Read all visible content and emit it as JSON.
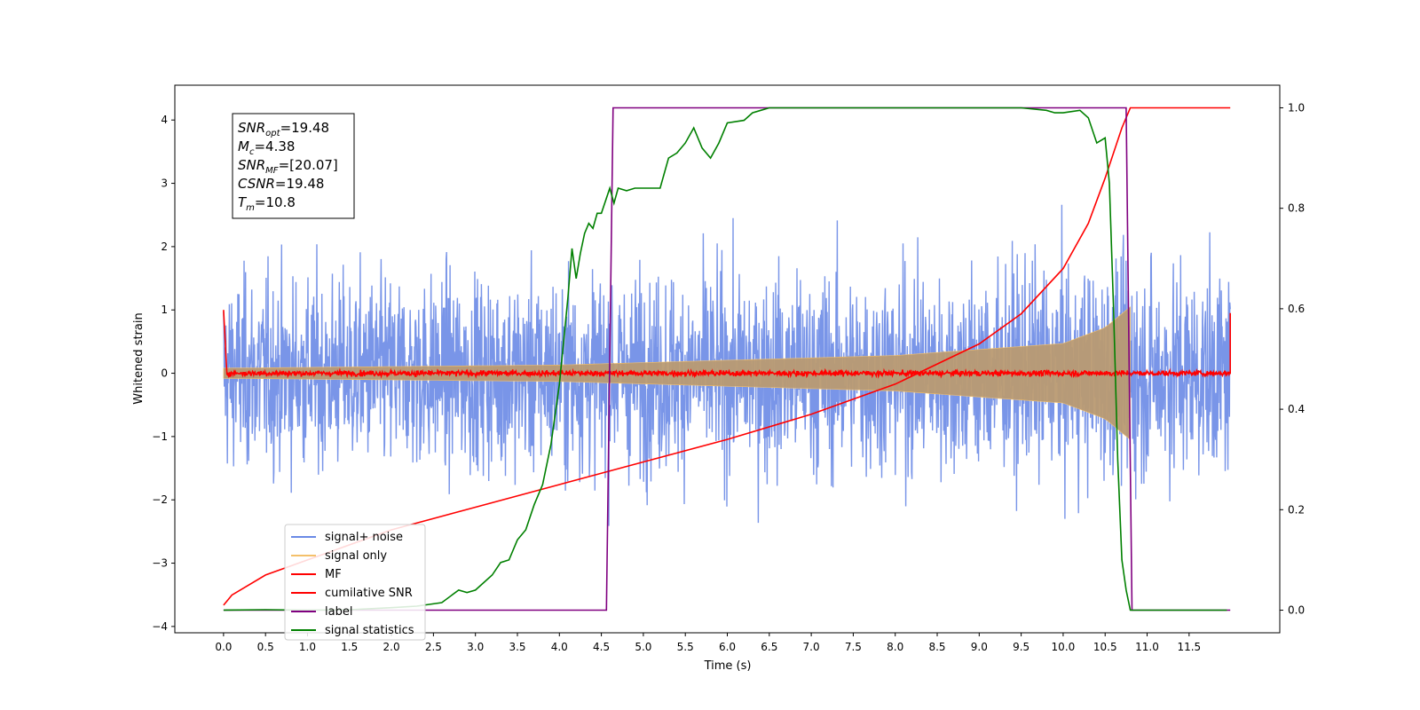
{
  "chart_data": {
    "type": "line",
    "xlabel": "Time (s)",
    "ylabel": "Whitened strain",
    "xlim": [
      -0.58,
      12.58
    ],
    "ylim": [
      -4.1,
      4.55
    ],
    "ylim_right": [
      -0.045,
      1.045
    ],
    "x_ticks": [
      0.0,
      0.5,
      1.0,
      1.5,
      2.0,
      2.5,
      3.0,
      3.5,
      4.0,
      4.5,
      5.0,
      5.5,
      6.0,
      6.5,
      7.0,
      7.5,
      8.0,
      8.5,
      9.0,
      9.5,
      10.0,
      10.5,
      11.0,
      11.5
    ],
    "x_tick_labels": [
      "0.0",
      "0.5",
      "1.0",
      "1.5",
      "2.0",
      "2.5",
      "3.0",
      "3.5",
      "4.0",
      "4.5",
      "5.0",
      "5.5",
      "6.0",
      "6.5",
      "7.0",
      "7.5",
      "8.0",
      "8.5",
      "9.0",
      "9.5",
      "10.0",
      "10.5",
      "11.0",
      "11.5"
    ],
    "y_ticks": [
      -4,
      -3,
      -2,
      -1,
      0,
      1,
      2,
      3,
      4
    ],
    "y_tick_labels": [
      "−4",
      "−3",
      "−2",
      "−1",
      "0",
      "1",
      "2",
      "3",
      "4"
    ],
    "y_right_ticks": [
      0.0,
      0.2,
      0.4,
      0.6,
      0.8,
      1.0
    ],
    "y_right_tick_labels": [
      "0.0",
      "0.2",
      "0.4",
      "0.6",
      "0.8",
      "1.0"
    ],
    "legend_position": "lower-left",
    "colors": {
      "signal_noise": "#6a8ae6",
      "signal_only": "#f4c06a",
      "mf": "#ff0000",
      "cumulative_snr": "#ff0000",
      "label": "#800080",
      "signal_statistics": "#008000"
    },
    "series": [
      {
        "name": "signal+ noise",
        "axis": "left",
        "note_rendering": "dense random noise, sigma grows near merger",
        "t_range": [
          0.0,
          11.99
        ],
        "envelope": [
          {
            "t": 0.0,
            "amp": 2.3
          },
          {
            "t": 5.0,
            "amp": 2.4
          },
          {
            "t": 10.0,
            "amp": 2.6
          },
          {
            "t": 10.8,
            "amp": 2.7
          },
          {
            "t": 11.99,
            "amp": 2.4
          }
        ]
      },
      {
        "name": "signal only",
        "axis": "left",
        "t_range": [
          0.0,
          10.8
        ],
        "envelope": [
          {
            "t": 0.0,
            "amp": 0.08
          },
          {
            "t": 4.0,
            "amp": 0.13
          },
          {
            "t": 8.0,
            "amp": 0.28
          },
          {
            "t": 10.0,
            "amp": 0.47
          },
          {
            "t": 10.5,
            "amp": 0.72
          },
          {
            "t": 10.8,
            "amp": 1.05
          }
        ]
      },
      {
        "name": "MF",
        "axis": "left",
        "t_range": [
          0.0,
          11.99
        ],
        "start_value": 1.0,
        "end_value": 0.95,
        "baseline": 0.0,
        "noise_amp": 0.05
      },
      {
        "name": "cumilative SNR",
        "axis": "right",
        "x": [
          0.0,
          0.1,
          0.5,
          1.0,
          2.0,
          3.0,
          4.0,
          5.0,
          6.0,
          7.0,
          8.0,
          9.0,
          9.5,
          10.0,
          10.3,
          10.5,
          10.7,
          10.8,
          11.99
        ],
        "y": [
          0.01,
          0.03,
          0.07,
          0.1,
          0.16,
          0.205,
          0.25,
          0.295,
          0.34,
          0.39,
          0.45,
          0.53,
          0.59,
          0.68,
          0.77,
          0.86,
          0.96,
          1.0,
          1.0
        ]
      },
      {
        "name": "label",
        "axis": "right",
        "x": [
          0.0,
          4.56,
          4.64,
          10.75,
          10.82,
          11.99
        ],
        "y": [
          0.0,
          0.0,
          1.0,
          1.0,
          0.0,
          0.0
        ]
      },
      {
        "name": "signal statistics",
        "axis": "right",
        "x": [
          0.0,
          0.5,
          1.0,
          1.5,
          2.0,
          2.3,
          2.6,
          2.8,
          2.9,
          3.0,
          3.2,
          3.3,
          3.4,
          3.5,
          3.6,
          3.7,
          3.8,
          3.9,
          4.0,
          4.1,
          4.15,
          4.2,
          4.25,
          4.3,
          4.35,
          4.4,
          4.45,
          4.5,
          4.6,
          4.65,
          4.7,
          4.8,
          4.9,
          5.0,
          5.2,
          5.3,
          5.4,
          5.5,
          5.6,
          5.7,
          5.8,
          5.9,
          6.0,
          6.2,
          6.3,
          6.4,
          6.5,
          6.8,
          7.0,
          7.5,
          8.0,
          8.5,
          9.0,
          9.5,
          9.8,
          9.9,
          10.0,
          10.2,
          10.3,
          10.4,
          10.5,
          10.55,
          10.6,
          10.65,
          10.7,
          10.75,
          10.8,
          10.9,
          11.5,
          11.95
        ],
        "y": [
          0.0,
          0.001,
          0.0,
          0.001,
          0.005,
          0.008,
          0.015,
          0.04,
          0.035,
          0.04,
          0.07,
          0.095,
          0.1,
          0.14,
          0.16,
          0.21,
          0.25,
          0.33,
          0.45,
          0.62,
          0.72,
          0.66,
          0.71,
          0.75,
          0.77,
          0.76,
          0.79,
          0.79,
          0.84,
          0.81,
          0.84,
          0.835,
          0.84,
          0.84,
          0.84,
          0.9,
          0.91,
          0.93,
          0.96,
          0.92,
          0.9,
          0.93,
          0.97,
          0.975,
          0.99,
          0.995,
          1.0,
          1.0,
          1.0,
          1.0,
          1.0,
          1.0,
          1.0,
          1.0,
          0.995,
          0.99,
          0.99,
          0.995,
          0.98,
          0.93,
          0.94,
          0.85,
          0.6,
          0.3,
          0.1,
          0.04,
          0.0,
          0.0,
          0.0,
          0.0
        ]
      }
    ],
    "legend": [
      "signal+ noise",
      "signal only",
      "MF",
      "cumilative SNR",
      "label",
      "signal statistics"
    ],
    "annotation": [
      {
        "base": "SNR",
        "sub": "opt",
        "value": "=19.48"
      },
      {
        "base": "M",
        "sub": "c",
        "value": "=4.38"
      },
      {
        "base": "SNR",
        "sub": "MF",
        "value": "=[20.07]"
      },
      {
        "base": "CSNR",
        "sub": "",
        "value": "=19.48"
      },
      {
        "base": "T",
        "sub": "m",
        "value": "=10.8"
      }
    ]
  }
}
